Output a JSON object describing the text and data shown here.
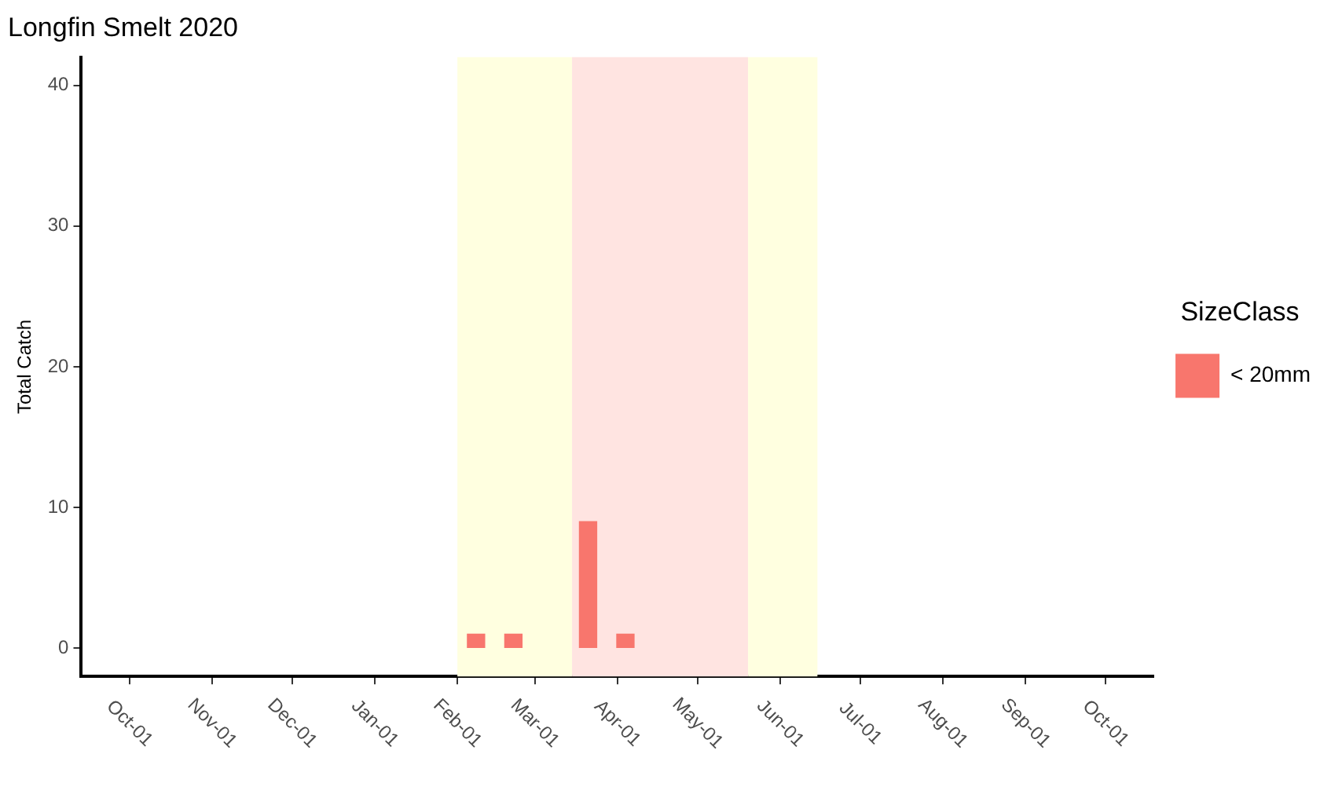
{
  "chart_data": {
    "type": "bar",
    "title": "Longfin Smelt 2020",
    "ylabel": "Total Catch",
    "legend_title": "SizeClass",
    "legend": "right",
    "x": [
      "2020-02-08",
      "2020-02-22",
      "2020-03-21",
      "2020-04-04"
    ],
    "series": [
      {
        "name": "< 20mm",
        "color": "#f8766d",
        "values": [
          1,
          1,
          9,
          1
        ]
      }
    ],
    "xlim": [
      "2019-09-13",
      "2020-10-19"
    ],
    "xticks": [
      {
        "value": "2019-10-01",
        "label": "Oct-01"
      },
      {
        "value": "2019-11-01",
        "label": "Nov-01"
      },
      {
        "value": "2019-12-01",
        "label": "Dec-01"
      },
      {
        "value": "2020-01-01",
        "label": "Jan-01"
      },
      {
        "value": "2020-02-01",
        "label": "Feb-01"
      },
      {
        "value": "2020-03-01",
        "label": "Mar-01"
      },
      {
        "value": "2020-04-01",
        "label": "Apr-01"
      },
      {
        "value": "2020-05-01",
        "label": "May-01"
      },
      {
        "value": "2020-06-01",
        "label": "Jun-01"
      },
      {
        "value": "2020-07-01",
        "label": "Jul-01"
      },
      {
        "value": "2020-08-01",
        "label": "Aug-01"
      },
      {
        "value": "2020-09-01",
        "label": "Sep-01"
      },
      {
        "value": "2020-10-01",
        "label": "Oct-01"
      }
    ],
    "ylim": [
      -2,
      42
    ],
    "yticks": [
      0,
      10,
      20,
      30,
      40
    ],
    "grid": false,
    "bands": [
      {
        "axis": "x",
        "from": "2020-02-01",
        "to": "2020-03-15",
        "color": "#ffffe0"
      },
      {
        "axis": "x",
        "from": "2020-03-15",
        "to": "2020-05-20",
        "color": "#ffe4e1"
      },
      {
        "axis": "x",
        "from": "2020-05-20",
        "to": "2020-06-15",
        "color": "#ffffe0"
      }
    ]
  }
}
